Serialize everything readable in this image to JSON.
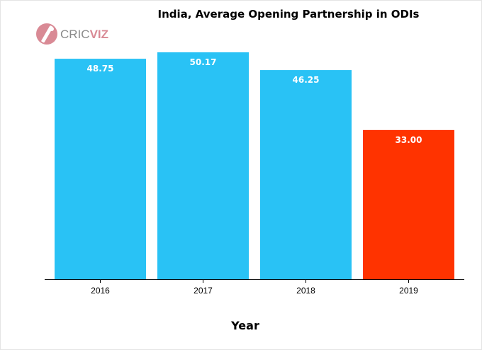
{
  "brand": {
    "logo_prefix": "CRIC",
    "logo_suffix": "VIZ",
    "prefix_color": "#8a8a8a",
    "suffix_color": "#d98a95",
    "icon_color": "#d98a95"
  },
  "chart_data": {
    "type": "bar",
    "title": "India, Average Opening Partnership in ODIs",
    "xlabel": "Year",
    "ylabel": "",
    "categories": [
      "2016",
      "2017",
      "2018",
      "2019"
    ],
    "values": [
      48.75,
      50.17,
      46.25,
      33.0
    ],
    "data_labels": [
      "48.75",
      "50.17",
      "46.25",
      "33.00"
    ],
    "colors": [
      "#29c2f5",
      "#29c2f5",
      "#29c2f5",
      "#ff3300"
    ],
    "ylim": [
      0,
      50.17
    ],
    "grid": false,
    "legend": "none"
  }
}
